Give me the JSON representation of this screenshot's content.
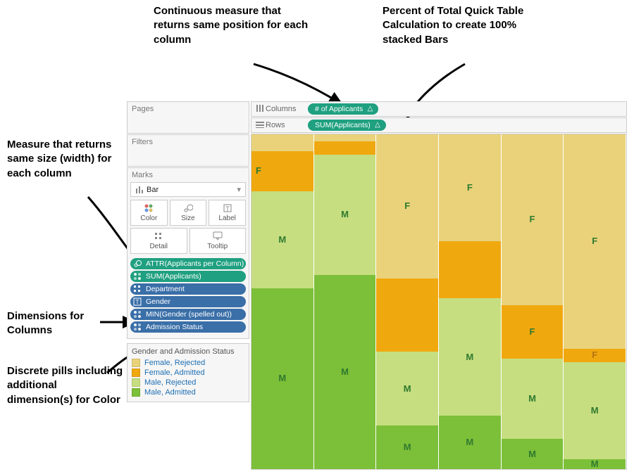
{
  "annotations": {
    "top_left": "Continuous measure that returns same position for each column",
    "top_right": "Percent of Total Quick Table Calculation to create 100% stacked Bars",
    "side_measure": "Measure that returns same size (width) for each column",
    "side_dims": "Dimensions for Columns",
    "side_color": "Discrete pills including additional dimension(s) for Color"
  },
  "shelves": {
    "pages_label": "Pages",
    "filters_label": "Filters",
    "columns_label": "Columns",
    "rows_label": "Rows",
    "columns_pill": "# of Applicants",
    "rows_pill": "SUM(Applicants)"
  },
  "marks": {
    "header": "Marks",
    "type_label": "Bar",
    "btn_color": "Color",
    "btn_size": "Size",
    "btn_label": "Label",
    "btn_detail": "Detail",
    "btn_tooltip": "Tooltip",
    "pills": [
      {
        "text": "ATTR(Applicants per Column)",
        "color": "green",
        "icon": "size"
      },
      {
        "text": "SUM(Applicants)",
        "color": "green",
        "icon": "color"
      },
      {
        "text": "Department",
        "color": "blue",
        "icon": "detail"
      },
      {
        "text": "Gender",
        "color": "blue",
        "icon": "label"
      },
      {
        "text": "MIN(Gender (spelled out))",
        "color": "blue",
        "icon": "color"
      },
      {
        "text": "Admission Status",
        "color": "blue",
        "icon": "color"
      }
    ]
  },
  "legend": {
    "title": "Gender and Admission Status",
    "items": [
      {
        "label": "Female, Rejected",
        "color": "#e9d27a"
      },
      {
        "label": "Female, Admitted",
        "color": "#f0a80f"
      },
      {
        "label": "Male, Rejected",
        "color": "#c6de80"
      },
      {
        "label": "Male, Admitted",
        "color": "#7cbf38"
      }
    ]
  },
  "palette": {
    "female_rejected": "#e9d27a",
    "female_admitted": "#f0a80f",
    "male_rejected": "#c6de80",
    "male_admitted": "#7cbf38",
    "label_dark": "#2f7a2f",
    "label_orange": "#b77410"
  },
  "chart": {
    "columns": [
      {
        "segments": [
          {
            "cat": "female_rejected",
            "pct": 5,
            "label": ""
          },
          {
            "cat": "female_admitted",
            "pct": 12,
            "label": "F",
            "labelPos": "left"
          },
          {
            "cat": "male_rejected",
            "pct": 29,
            "label": "M"
          },
          {
            "cat": "male_admitted",
            "pct": 54,
            "label": "M"
          }
        ]
      },
      {
        "segments": [
          {
            "cat": "female_rejected",
            "pct": 2,
            "label": ""
          },
          {
            "cat": "female_admitted",
            "pct": 4,
            "label": ""
          },
          {
            "cat": "male_rejected",
            "pct": 36,
            "label": "M"
          },
          {
            "cat": "male_admitted",
            "pct": 58,
            "label": "M"
          }
        ]
      },
      {
        "segments": [
          {
            "cat": "female_rejected",
            "pct": 43,
            "label": "F"
          },
          {
            "cat": "female_admitted",
            "pct": 22,
            "label": ""
          },
          {
            "cat": "male_rejected",
            "pct": 22,
            "label": "M"
          },
          {
            "cat": "male_admitted",
            "pct": 13,
            "label": "M"
          }
        ]
      },
      {
        "segments": [
          {
            "cat": "female_rejected",
            "pct": 32,
            "label": "F"
          },
          {
            "cat": "female_admitted",
            "pct": 17,
            "label": ""
          },
          {
            "cat": "male_rejected",
            "pct": 35,
            "label": "M"
          },
          {
            "cat": "male_admitted",
            "pct": 16,
            "label": "M"
          }
        ]
      },
      {
        "segments": [
          {
            "cat": "female_rejected",
            "pct": 51,
            "label": "F"
          },
          {
            "cat": "female_admitted",
            "pct": 16,
            "label": "F"
          },
          {
            "cat": "male_rejected",
            "pct": 24,
            "label": "M"
          },
          {
            "cat": "male_admitted",
            "pct": 9,
            "label": "M"
          }
        ]
      },
      {
        "segments": [
          {
            "cat": "female_rejected",
            "pct": 64,
            "label": "F"
          },
          {
            "cat": "female_admitted",
            "pct": 4,
            "label": "F",
            "labelColor": "label_orange"
          },
          {
            "cat": "male_rejected",
            "pct": 29,
            "label": "M"
          },
          {
            "cat": "male_admitted",
            "pct": 3,
            "label": "M"
          }
        ]
      }
    ]
  }
}
